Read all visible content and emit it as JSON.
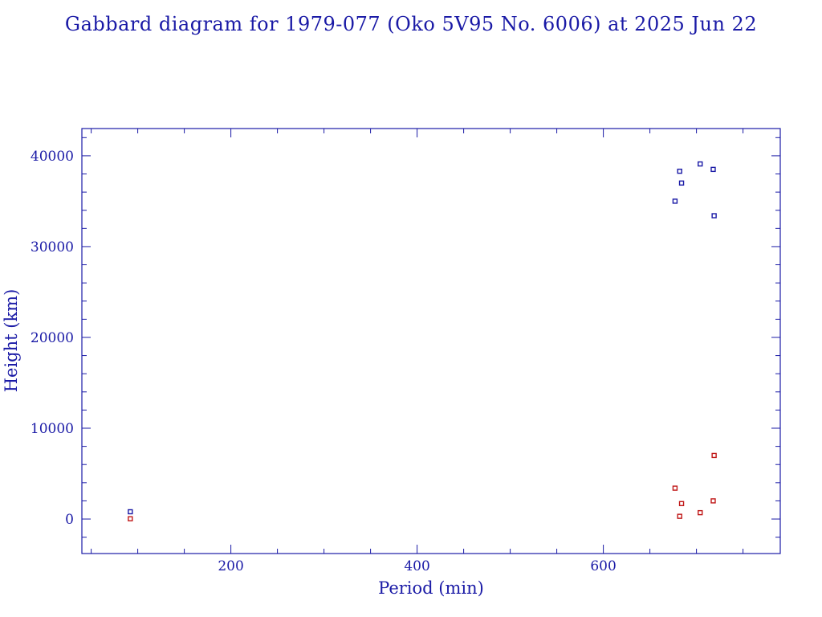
{
  "chart_data": {
    "type": "scatter",
    "title": "Gabbard diagram for 1979-077 (Oko 5V95 No. 6006) at 2025 Jun 22",
    "xlabel": "Period (min)",
    "ylabel": "Height (km)",
    "xlim": [
      40,
      790
    ],
    "ylim": [
      -3800,
      43000
    ],
    "xticks": [
      200,
      400,
      600
    ],
    "yticks": [
      0,
      10000,
      20000,
      30000,
      40000
    ],
    "grid": false,
    "legend": "none",
    "series": [
      {
        "color": "#1a1aa6",
        "points": [
          [
            92,
            800
          ],
          [
            677,
            35000
          ],
          [
            682,
            38300
          ],
          [
            684,
            37000
          ],
          [
            704,
            39100
          ],
          [
            718,
            38500
          ],
          [
            719,
            33400
          ]
        ]
      },
      {
        "color": "#c01818",
        "points": [
          [
            92,
            30
          ],
          [
            677,
            3400
          ],
          [
            682,
            300
          ],
          [
            684,
            1700
          ],
          [
            704,
            700
          ],
          [
            718,
            2000
          ],
          [
            719,
            7000
          ]
        ]
      }
    ]
  }
}
